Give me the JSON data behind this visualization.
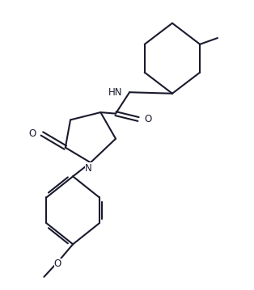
{
  "bg_color": "#ffffff",
  "line_color": "#1a1a2e",
  "line_width": 1.5,
  "font_size": 8.5,
  "figsize": [
    3.14,
    3.59
  ],
  "dpi": 100,
  "xlim": [
    0,
    10
  ],
  "ylim": [
    0,
    11.5
  ]
}
